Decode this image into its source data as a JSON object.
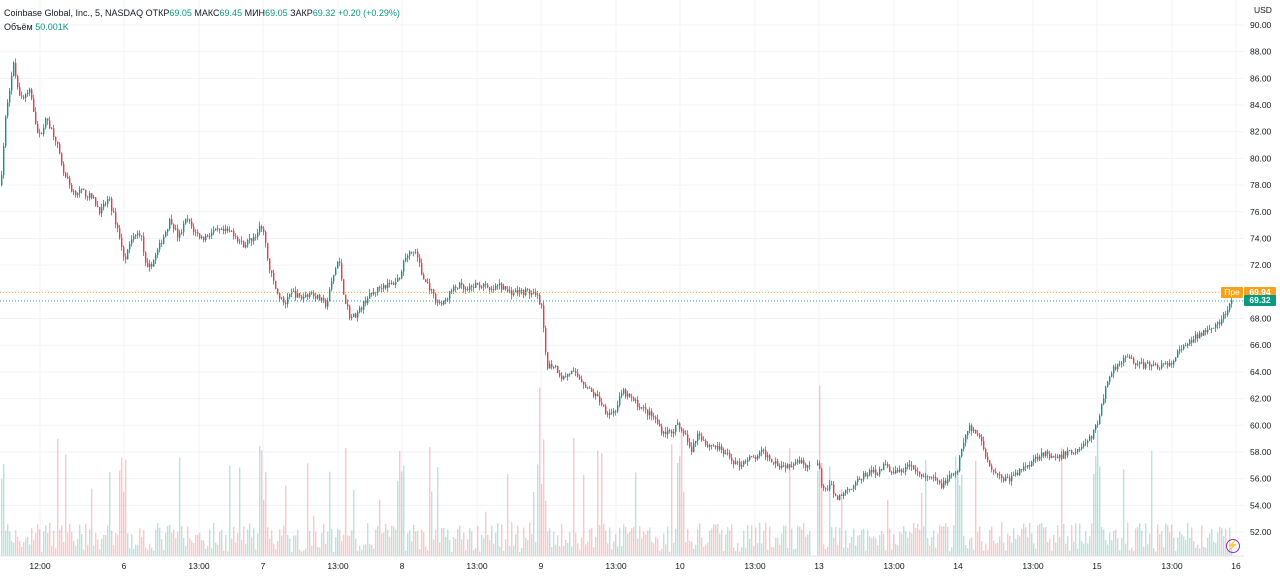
{
  "legend": {
    "symbol": "Coinbase Global, Inc., 5, NASDAQ",
    "open_label": "ОТКР",
    "open": "69.05",
    "high_label": "МАКС",
    "high": "69.45",
    "low_label": "МИН",
    "low": "69.05",
    "close_label": "ЗАКР",
    "close": "69.32",
    "change": "+0.20 (+0.29%)",
    "volume_label": "Объём",
    "volume": "50.001K"
  },
  "currency": "USD",
  "current_price": "69.32",
  "premarket": {
    "label": "Пре",
    "value": "69.94"
  },
  "colors": {
    "up": "#089981",
    "down": "#f23645",
    "premarket": "#f7a21b",
    "grid": "#f0f3fa",
    "purple": "#9c27b0"
  },
  "chart_data": {
    "type": "candlestick",
    "ylim": [
      51,
      91
    ],
    "y_ticks": [
      "90.00",
      "88.00",
      "86.00",
      "84.00",
      "82.00",
      "80.00",
      "78.00",
      "76.00",
      "74.00",
      "72.00",
      "70.00",
      "68.00",
      "66.00",
      "64.00",
      "62.00",
      "60.00",
      "58.00",
      "56.00",
      "54.00",
      "52.00"
    ],
    "x_labels": [
      "12:00",
      "6",
      "13:00",
      "7",
      "13:00",
      "8",
      "13:00",
      "9",
      "13:00",
      "10",
      "13:00",
      "13",
      "13:00",
      "14",
      "13:00",
      "15",
      "13:00",
      "16"
    ],
    "path": [
      [
        0,
        78.0
      ],
      [
        6,
        84.0
      ],
      [
        13,
        87.0
      ],
      [
        20,
        84.5
      ],
      [
        30,
        85.0
      ],
      [
        38,
        81.5
      ],
      [
        46,
        83.0
      ],
      [
        55,
        81.5
      ],
      [
        63,
        79.0
      ],
      [
        72,
        77.5
      ],
      [
        82,
        77.5
      ],
      [
        92,
        77.0
      ],
      [
        100,
        76.0
      ],
      [
        108,
        77.0
      ],
      [
        118,
        74.5
      ],
      [
        124,
        72.5
      ],
      [
        132,
        74.0
      ],
      [
        140,
        74.5
      ],
      [
        146,
        71.5
      ],
      [
        154,
        72.5
      ],
      [
        162,
        74.0
      ],
      [
        170,
        75.5
      ],
      [
        178,
        74.0
      ],
      [
        186,
        75.5
      ],
      [
        194,
        74.5
      ],
      [
        202,
        74.0
      ],
      [
        212,
        74.5
      ],
      [
        222,
        74.5
      ],
      [
        232,
        74.5
      ],
      [
        242,
        73.5
      ],
      [
        252,
        74.0
      ],
      [
        262,
        75.0
      ],
      [
        268,
        72.0
      ],
      [
        276,
        70.0
      ],
      [
        284,
        69.0
      ],
      [
        292,
        70.0
      ],
      [
        300,
        69.5
      ],
      [
        310,
        70.0
      ],
      [
        318,
        69.5
      ],
      [
        326,
        69.0
      ],
      [
        332,
        71.0
      ],
      [
        338,
        72.5
      ],
      [
        344,
        69.5
      ],
      [
        350,
        68.0
      ],
      [
        358,
        68.5
      ],
      [
        366,
        69.5
      ],
      [
        374,
        70.0
      ],
      [
        382,
        70.5
      ],
      [
        390,
        70.5
      ],
      [
        398,
        71.0
      ],
      [
        404,
        72.5
      ],
      [
        410,
        73.0
      ],
      [
        416,
        73.0
      ],
      [
        422,
        71.0
      ],
      [
        428,
        70.5
      ],
      [
        434,
        69.5
      ],
      [
        442,
        69.0
      ],
      [
        450,
        70.0
      ],
      [
        458,
        70.5
      ],
      [
        466,
        70.0
      ],
      [
        474,
        70.5
      ],
      [
        482,
        70.5
      ],
      [
        490,
        70.0
      ],
      [
        498,
        70.5
      ],
      [
        508,
        70.0
      ],
      [
        518,
        70.0
      ],
      [
        528,
        70.0
      ],
      [
        538,
        69.5
      ],
      [
        542,
        68.5
      ],
      [
        546,
        64.5
      ],
      [
        554,
        64.5
      ],
      [
        562,
        63.5
      ],
      [
        570,
        64.0
      ],
      [
        580,
        63.5
      ],
      [
        590,
        62.5
      ],
      [
        598,
        62.0
      ],
      [
        606,
        61.0
      ],
      [
        614,
        61.0
      ],
      [
        622,
        62.5
      ],
      [
        630,
        62.0
      ],
      [
        638,
        61.5
      ],
      [
        646,
        61.0
      ],
      [
        654,
        60.5
      ],
      [
        662,
        59.5
      ],
      [
        670,
        59.5
      ],
      [
        678,
        60.0
      ],
      [
        684,
        59.5
      ],
      [
        690,
        58.0
      ],
      [
        698,
        59.5
      ],
      [
        706,
        58.5
      ],
      [
        714,
        58.5
      ],
      [
        722,
        58.0
      ],
      [
        730,
        57.5
      ],
      [
        738,
        57.0
      ],
      [
        746,
        57.5
      ],
      [
        754,
        57.5
      ],
      [
        762,
        58.0
      ],
      [
        770,
        57.5
      ],
      [
        780,
        57.0
      ],
      [
        788,
        57.0
      ],
      [
        796,
        57.5
      ],
      [
        806,
        57.0
      ],
      [
        818,
        57.0
      ],
      [
        822,
        55.0
      ],
      [
        830,
        55.5
      ],
      [
        836,
        54.5
      ],
      [
        844,
        55.0
      ],
      [
        852,
        55.5
      ],
      [
        860,
        56.0
      ],
      [
        868,
        56.5
      ],
      [
        876,
        56.5
      ],
      [
        884,
        57.0
      ],
      [
        892,
        56.5
      ],
      [
        900,
        56.5
      ],
      [
        908,
        57.0
      ],
      [
        916,
        56.5
      ],
      [
        924,
        56.0
      ],
      [
        932,
        56.0
      ],
      [
        940,
        55.5
      ],
      [
        948,
        56.0
      ],
      [
        956,
        56.5
      ],
      [
        962,
        58.5
      ],
      [
        968,
        60.0
      ],
      [
        974,
        59.5
      ],
      [
        980,
        59.0
      ],
      [
        986,
        57.5
      ],
      [
        994,
        56.5
      ],
      [
        1002,
        56.0
      ],
      [
        1010,
        56.0
      ],
      [
        1018,
        56.5
      ],
      [
        1026,
        57.0
      ],
      [
        1034,
        57.5
      ],
      [
        1042,
        58.0
      ],
      [
        1050,
        57.5
      ],
      [
        1058,
        57.5
      ],
      [
        1066,
        58.0
      ],
      [
        1074,
        58.0
      ],
      [
        1082,
        58.5
      ],
      [
        1090,
        59.0
      ],
      [
        1098,
        60.5
      ],
      [
        1104,
        62.5
      ],
      [
        1110,
        64.0
      ],
      [
        1116,
        64.5
      ],
      [
        1122,
        65.0
      ],
      [
        1130,
        65.0
      ],
      [
        1138,
        64.5
      ],
      [
        1146,
        64.5
      ],
      [
        1154,
        64.5
      ],
      [
        1162,
        64.5
      ],
      [
        1170,
        64.5
      ],
      [
        1178,
        65.5
      ],
      [
        1186,
        66.0
      ],
      [
        1194,
        66.5
      ],
      [
        1202,
        67.0
      ],
      [
        1210,
        67.5
      ],
      [
        1218,
        67.5
      ],
      [
        1226,
        68.5
      ],
      [
        1232,
        69.32
      ]
    ]
  }
}
